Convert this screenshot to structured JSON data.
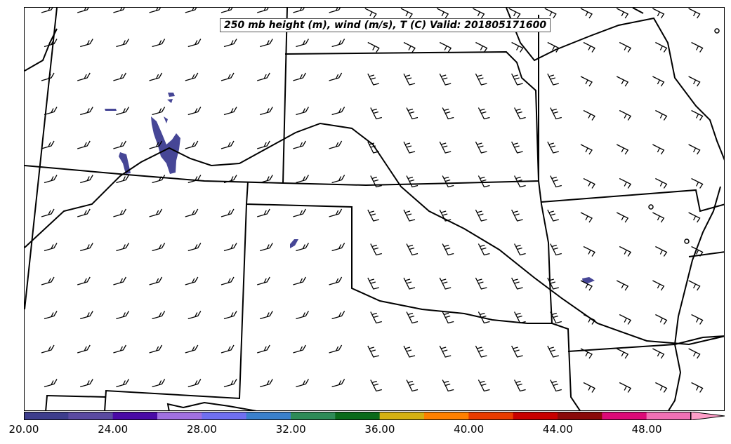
{
  "title": "250 mb height (m), wind (m/s), T (C) Valid: 201805171600",
  "colorbar": {
    "colors": [
      "#3d3d8c",
      "#5a4aa0",
      "#4a0aa6",
      "#a070e0",
      "#6f6ff0",
      "#3a80cc",
      "#2e8b57",
      "#0a6a1a",
      "#d4b012",
      "#ff8000",
      "#e83c00",
      "#c80000",
      "#8a0a0a",
      "#dc0a78",
      "#f070b4",
      "#ff9ec8"
    ],
    "labels": [
      "20.00",
      "24.00",
      "28.00",
      "32.00",
      "36.00",
      "40.00",
      "44.00",
      "48.00"
    ],
    "label_values": [
      20,
      24,
      28,
      32,
      36,
      40,
      44,
      48
    ],
    "range": [
      20,
      51.5
    ],
    "extend": "max"
  },
  "filled_shading_color": "#464696",
  "barb_color": "#000000",
  "boundary_color": "#000000"
}
